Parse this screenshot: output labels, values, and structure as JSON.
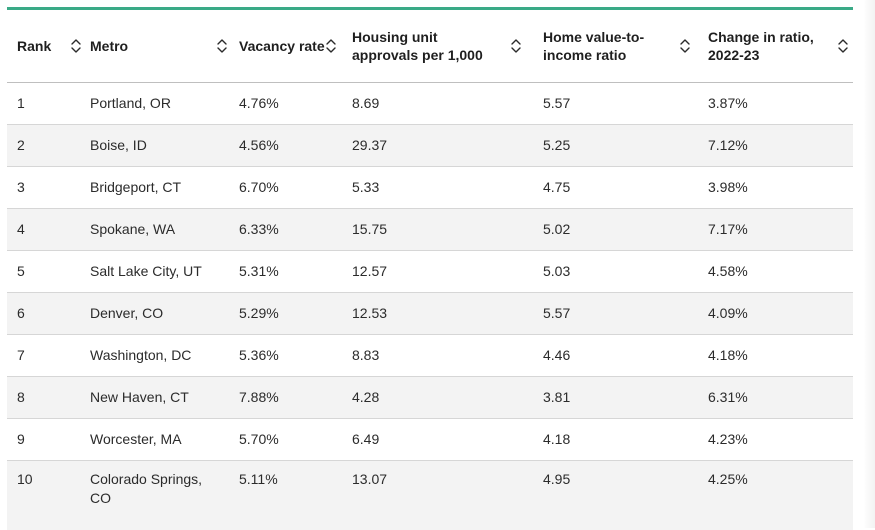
{
  "table": {
    "columns": [
      {
        "key": "rank",
        "label": "Rank",
        "sort_icon": "sort-updown-icon"
      },
      {
        "key": "metro",
        "label": "Metro",
        "sort_icon": "sort-updown-icon"
      },
      {
        "key": "vacancy_rate",
        "label": "Vacancy rate",
        "sort_icon": "sort-updown-icon"
      },
      {
        "key": "approvals",
        "label": "Housing unit approvals per 1,000",
        "sort_icon": "sort-updown-icon"
      },
      {
        "key": "value_to_income",
        "label": "Home value-to-income ratio",
        "sort_icon": "sort-updown-icon"
      },
      {
        "key": "change_ratio",
        "label": "Change in ratio, 2022-23",
        "sort_icon": "sort-updown-icon"
      }
    ],
    "rows": [
      {
        "rank": "1",
        "metro": "Portland, OR",
        "vacancy_rate": "4.76%",
        "approvals": "8.69",
        "value_to_income": "5.57",
        "change_ratio": "3.87%"
      },
      {
        "rank": "2",
        "metro": "Boise, ID",
        "vacancy_rate": "4.56%",
        "approvals": "29.37",
        "value_to_income": "5.25",
        "change_ratio": "7.12%"
      },
      {
        "rank": "3",
        "metro": "Bridgeport, CT",
        "vacancy_rate": "6.70%",
        "approvals": "5.33",
        "value_to_income": "4.75",
        "change_ratio": "3.98%"
      },
      {
        "rank": "4",
        "metro": "Spokane, WA",
        "vacancy_rate": "6.33%",
        "approvals": "15.75",
        "value_to_income": "5.02",
        "change_ratio": "7.17%"
      },
      {
        "rank": "5",
        "metro": "Salt Lake City, UT",
        "vacancy_rate": "5.31%",
        "approvals": "12.57",
        "value_to_income": "5.03",
        "change_ratio": "4.58%"
      },
      {
        "rank": "6",
        "metro": "Denver, CO",
        "vacancy_rate": "5.29%",
        "approvals": "12.53",
        "value_to_income": "5.57",
        "change_ratio": "4.09%"
      },
      {
        "rank": "7",
        "metro": "Washington, DC",
        "vacancy_rate": "5.36%",
        "approvals": "8.83",
        "value_to_income": "4.46",
        "change_ratio": "4.18%"
      },
      {
        "rank": "8",
        "metro": "New Haven, CT",
        "vacancy_rate": "7.88%",
        "approvals": "4.28",
        "value_to_income": "3.81",
        "change_ratio": "6.31%"
      },
      {
        "rank": "9",
        "metro": "Worcester, MA",
        "vacancy_rate": "5.70%",
        "approvals": "6.49",
        "value_to_income": "4.18",
        "change_ratio": "4.23%"
      },
      {
        "rank": "10",
        "metro": "Colorado Springs, CO",
        "vacancy_rate": "5.11%",
        "approvals": "13.07",
        "value_to_income": "4.95",
        "change_ratio": "4.25%"
      }
    ]
  },
  "colors": {
    "accent": "#3aaa87",
    "row_stripe": "#f3f3f3",
    "row_border": "#d6d6d6",
    "text": "#1f1f1f"
  }
}
